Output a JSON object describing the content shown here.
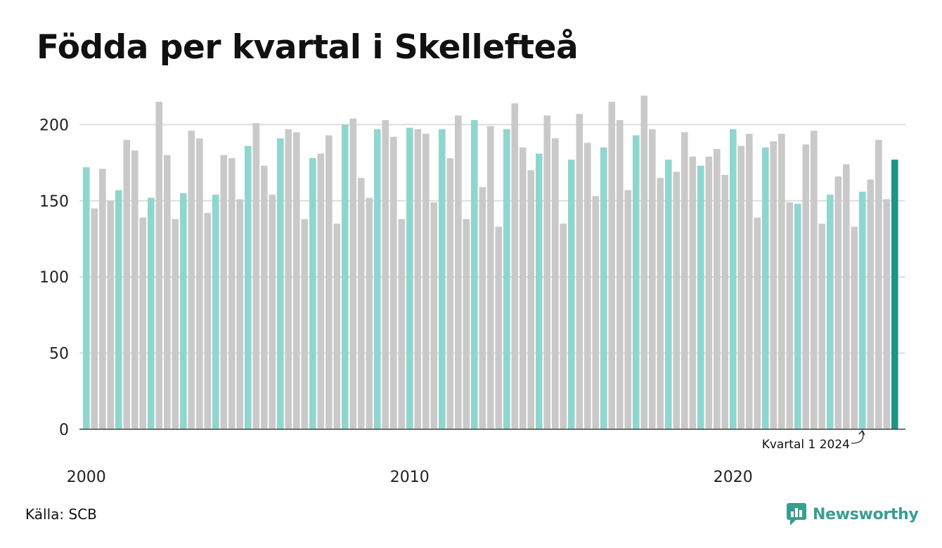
{
  "title": "Födda per kvartal i Skellefteå",
  "source": "Källa: SCB",
  "brand": "Newsworthy",
  "brand_icon": "newsworthy-logo-icon",
  "colors": {
    "q1": "#8fd6cf",
    "other": "#c9c9c9",
    "latest": "#1c9488",
    "grid": "#dddddd",
    "axis": "#444444",
    "brand": "#3a9d92"
  },
  "chart_data": {
    "type": "bar",
    "title": "Födda per kvartal i Skellefteå",
    "xlabel": "",
    "ylabel": "",
    "ylim": [
      0,
      220
    ],
    "yticks": [
      0,
      50,
      100,
      150,
      200
    ],
    "grid": true,
    "xtick_labels": [
      {
        "label": "2000",
        "year": 2000
      },
      {
        "label": "2010",
        "year": 2010
      },
      {
        "label": "2020",
        "year": 2020
      }
    ],
    "start_year": 2000,
    "highlight": "Q1 bars in teal, latest quarter in dark teal",
    "annotation": {
      "text": "Kvartal 1 2024",
      "target": "2024 Q1"
    },
    "values": [
      172,
      145,
      171,
      150,
      157,
      190,
      183,
      139,
      152,
      215,
      180,
      138,
      155,
      196,
      191,
      142,
      154,
      180,
      178,
      151,
      186,
      201,
      173,
      154,
      191,
      197,
      195,
      138,
      178,
      181,
      193,
      135,
      200,
      204,
      165,
      152,
      197,
      203,
      192,
      138,
      198,
      197,
      194,
      149,
      197,
      178,
      206,
      138,
      203,
      159,
      199,
      133,
      197,
      214,
      185,
      170,
      181,
      206,
      191,
      135,
      177,
      207,
      188,
      153,
      185,
      215,
      203,
      157,
      193,
      219,
      197,
      165,
      177,
      169,
      195,
      179,
      173,
      179,
      184,
      167,
      197,
      186,
      194,
      139,
      185,
      189,
      194,
      149,
      148,
      187,
      196,
      135,
      154,
      166,
      174,
      133,
      156,
      164,
      190,
      151,
      177
    ]
  }
}
